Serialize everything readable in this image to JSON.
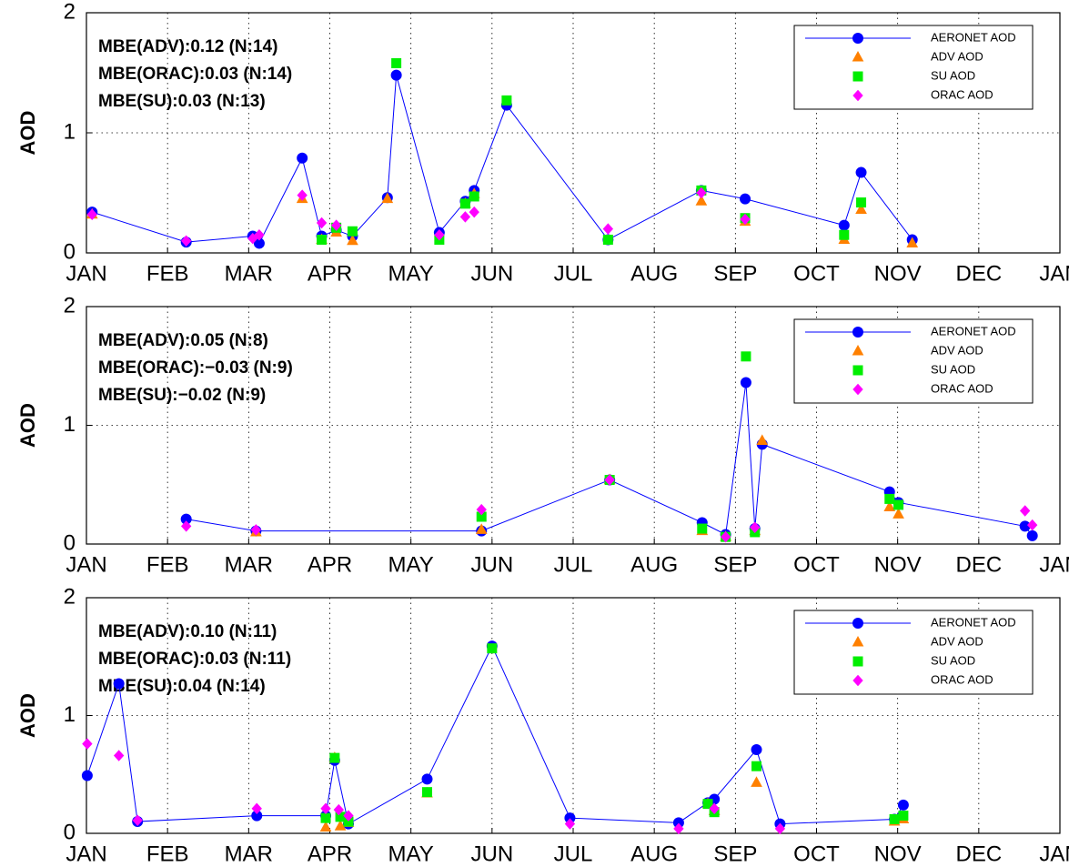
{
  "chart_data": [
    {
      "type": "line",
      "ylabel": "AOD",
      "annotations": [
        "MBE(ADV):0.12 (N:14)",
        "MBE(ORAC):0.03 (N:14)",
        "MBE(SU):0.03 (N:13)"
      ],
      "xlim": [
        0,
        12
      ],
      "xticks": [
        {
          "value": 0,
          "label": "JAN"
        },
        {
          "value": 1,
          "label": "FEB"
        },
        {
          "value": 2,
          "label": "MAR"
        },
        {
          "value": 3,
          "label": "APR"
        },
        {
          "value": 4,
          "label": "MAY"
        },
        {
          "value": 5,
          "label": "JUN"
        },
        {
          "value": 6,
          "label": "JUL"
        },
        {
          "value": 7,
          "label": "AUG"
        },
        {
          "value": 8,
          "label": "SEP"
        },
        {
          "value": 9,
          "label": "OCT"
        },
        {
          "value": 10,
          "label": "NOV"
        },
        {
          "value": 11,
          "label": "DEC"
        },
        {
          "value": 12,
          "label": "JAN"
        }
      ],
      "ylim": [
        0,
        2
      ],
      "yticks": [
        0,
        1,
        2
      ],
      "grid": true,
      "legend": "upper right",
      "series": [
        {
          "name": "AERONET AOD",
          "color": "#0000ff",
          "marker": "circle",
          "line": true,
          "x": [
            0.07,
            1.23,
            2.05,
            2.13,
            2.66,
            2.9,
            3.08,
            3.28,
            3.71,
            3.82,
            4.35,
            4.67,
            4.78,
            5.18,
            6.43,
            7.58,
            8.12,
            9.34,
            9.55,
            10.18
          ],
          "values": [
            0.34,
            0.09,
            0.14,
            0.08,
            0.79,
            0.14,
            0.19,
            0.14,
            0.46,
            1.48,
            0.17,
            0.43,
            0.52,
            1.23,
            0.11,
            0.52,
            0.45,
            0.23,
            0.67,
            0.11
          ]
        },
        {
          "name": "ADV AOD",
          "color": "#ff8000",
          "marker": "triangle",
          "line": false,
          "x": [
            0.07,
            2.66,
            2.9,
            3.08,
            3.28,
            3.71,
            4.67,
            4.78,
            7.58,
            8.12,
            9.34,
            9.55,
            10.18
          ],
          "values": [
            0.32,
            0.45,
            0.11,
            0.17,
            0.1,
            0.45,
            0.41,
            0.49,
            0.43,
            0.26,
            0.11,
            0.36,
            0.08
          ]
        },
        {
          "name": "SU AOD",
          "color": "#00ee00",
          "marker": "square",
          "line": false,
          "x": [
            2.9,
            3.08,
            3.28,
            3.82,
            4.35,
            4.67,
            4.78,
            5.18,
            6.43,
            7.58,
            8.12,
            9.34,
            9.55
          ],
          "values": [
            0.11,
            0.21,
            0.18,
            1.58,
            0.11,
            0.41,
            0.47,
            1.27,
            0.11,
            0.52,
            0.29,
            0.15,
            0.42
          ]
        },
        {
          "name": "ORAC AOD",
          "color": "#ff00ff",
          "marker": "diamond",
          "line": false,
          "x": [
            0.07,
            1.23,
            2.05,
            2.13,
            2.66,
            2.9,
            3.08,
            4.35,
            4.67,
            4.78,
            6.43,
            7.58,
            8.12
          ],
          "values": [
            0.32,
            0.1,
            0.12,
            0.15,
            0.48,
            0.25,
            0.23,
            0.15,
            0.3,
            0.34,
            0.2,
            0.5,
            0.28
          ]
        }
      ]
    },
    {
      "type": "line",
      "ylabel": "AOD",
      "annotations": [
        "MBE(ADV):0.05 (N:8)",
        "MBE(ORAC):−0.03 (N:9)",
        "MBE(SU):−0.02 (N:9)"
      ],
      "xlim": [
        0,
        12
      ],
      "xticks": [
        {
          "value": 0,
          "label": "JAN"
        },
        {
          "value": 1,
          "label": "FEB"
        },
        {
          "value": 2,
          "label": "MAR"
        },
        {
          "value": 3,
          "label": "APR"
        },
        {
          "value": 4,
          "label": "MAY"
        },
        {
          "value": 5,
          "label": "JUN"
        },
        {
          "value": 6,
          "label": "JUL"
        },
        {
          "value": 7,
          "label": "AUG"
        },
        {
          "value": 8,
          "label": "SEP"
        },
        {
          "value": 9,
          "label": "OCT"
        },
        {
          "value": 10,
          "label": "NOV"
        },
        {
          "value": 11,
          "label": "DEC"
        },
        {
          "value": 12,
          "label": "JAN"
        }
      ],
      "ylim": [
        0,
        2
      ],
      "yticks": [
        0,
        1,
        2
      ],
      "grid": true,
      "legend": "upper right",
      "series": [
        {
          "name": "AERONET AOD",
          "color": "#0000ff",
          "marker": "circle",
          "line": true,
          "x": [
            1.23,
            2.09,
            4.87,
            6.45,
            7.59,
            7.88,
            8.13,
            8.24,
            8.33,
            9.9,
            10.01,
            11.57,
            11.66
          ],
          "values": [
            0.21,
            0.11,
            0.11,
            0.54,
            0.18,
            0.08,
            1.36,
            0.13,
            0.84,
            0.44,
            0.35,
            0.15,
            0.07
          ]
        },
        {
          "name": "ADV AOD",
          "color": "#ff8000",
          "marker": "triangle",
          "line": false,
          "x": [
            2.09,
            4.87,
            6.45,
            7.59,
            7.88,
            8.24,
            8.33,
            9.9,
            10.01
          ],
          "values": [
            0.1,
            0.12,
            0.54,
            0.11,
            0.06,
            0.11,
            0.87,
            0.31,
            0.25
          ]
        },
        {
          "name": "SU AOD",
          "color": "#00ee00",
          "marker": "square",
          "line": false,
          "x": [
            4.87,
            6.45,
            7.59,
            7.88,
            8.13,
            8.24,
            9.9,
            10.01
          ],
          "values": [
            0.23,
            0.54,
            0.13,
            0.06,
            1.58,
            0.1,
            0.38,
            0.33
          ]
        },
        {
          "name": "ORAC AOD",
          "color": "#ff00ff",
          "marker": "diamond",
          "line": false,
          "x": [
            1.23,
            2.09,
            4.87,
            6.45,
            7.88,
            8.24,
            11.57,
            11.66
          ],
          "values": [
            0.15,
            0.12,
            0.29,
            0.54,
            0.06,
            0.14,
            0.28,
            0.16
          ]
        }
      ]
    },
    {
      "type": "line",
      "ylabel": "AOD",
      "annotations": [
        "MBE(ADV):0.10 (N:11)",
        "MBE(ORAC):0.03 (N:11)",
        "MBE(SU):0.04 (N:14)"
      ],
      "xlim": [
        0,
        12
      ],
      "xticks": [
        {
          "value": 0,
          "label": "JAN"
        },
        {
          "value": 1,
          "label": "FEB"
        },
        {
          "value": 2,
          "label": "MAR"
        },
        {
          "value": 3,
          "label": "APR"
        },
        {
          "value": 4,
          "label": "MAY"
        },
        {
          "value": 5,
          "label": "JUN"
        },
        {
          "value": 6,
          "label": "JUL"
        },
        {
          "value": 7,
          "label": "AUG"
        },
        {
          "value": 8,
          "label": "SEP"
        },
        {
          "value": 9,
          "label": "OCT"
        },
        {
          "value": 10,
          "label": "NOV"
        },
        {
          "value": 11,
          "label": "DEC"
        },
        {
          "value": 12,
          "label": "JAN"
        }
      ],
      "ylim": [
        0,
        2
      ],
      "yticks": [
        0,
        1,
        2
      ],
      "grid": true,
      "legend": "upper right",
      "series": [
        {
          "name": "AERONET AOD",
          "color": "#0000ff",
          "marker": "circle",
          "line": true,
          "x": [
            0.01,
            0.4,
            0.63,
            2.1,
            2.95,
            3.06,
            3.23,
            4.2,
            5.0,
            5.96,
            7.3,
            7.66,
            7.74,
            8.26,
            8.55,
            9.96,
            10.07
          ],
          "values": [
            0.49,
            1.27,
            0.1,
            0.15,
            0.15,
            0.62,
            0.08,
            0.46,
            1.59,
            0.13,
            0.09,
            0.26,
            0.29,
            0.71,
            0.08,
            0.12,
            0.24
          ]
        },
        {
          "name": "ADV AOD",
          "color": "#ff8000",
          "marker": "triangle",
          "line": false,
          "x": [
            2.95,
            3.06,
            3.13,
            3.23,
            4.2,
            7.66,
            7.74,
            8.26,
            9.96,
            10.07
          ],
          "values": [
            0.05,
            0.64,
            0.06,
            0.09,
            0.34,
            0.25,
            0.19,
            0.43,
            0.1,
            0.12
          ]
        },
        {
          "name": "SU AOD",
          "color": "#00ee00",
          "marker": "square",
          "line": false,
          "x": [
            2.95,
            3.06,
            3.13,
            3.23,
            4.2,
            5.0,
            7.66,
            7.74,
            8.26,
            9.96,
            10.07
          ],
          "values": [
            0.13,
            0.64,
            0.14,
            0.1,
            0.35,
            1.57,
            0.25,
            0.18,
            0.57,
            0.12,
            0.15
          ]
        },
        {
          "name": "ORAC AOD",
          "color": "#ff00ff",
          "marker": "diamond",
          "line": false,
          "x": [
            0.01,
            0.4,
            0.63,
            2.1,
            2.95,
            3.11,
            3.23,
            5.96,
            7.3,
            7.74,
            8.55
          ],
          "values": [
            0.76,
            0.66,
            0.11,
            0.21,
            0.21,
            0.2,
            0.15,
            0.08,
            0.04,
            0.21,
            0.04
          ]
        }
      ]
    }
  ]
}
